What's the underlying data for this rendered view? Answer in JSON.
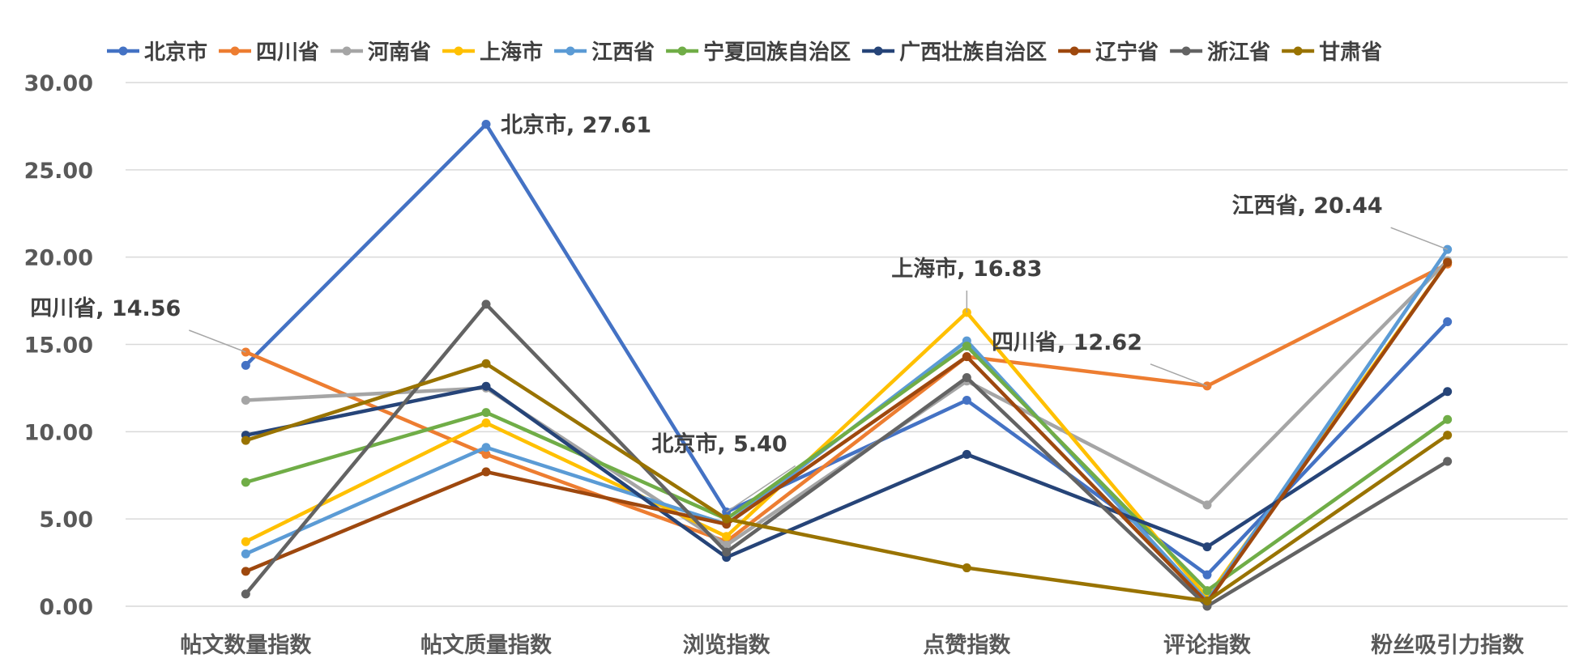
{
  "chart_data": {
    "type": "line",
    "categories": [
      "帖文数量指数",
      "帖文质量指数",
      "浏览指数",
      "点赞指数",
      "评论指数",
      "粉丝吸引力指数"
    ],
    "ylim": [
      0,
      30
    ],
    "yticks": [
      "0.00",
      "5.00",
      "10.00",
      "15.00",
      "20.00",
      "25.00",
      "30.00"
    ],
    "grid": true,
    "legend_position": "top",
    "series": [
      {
        "name": "北京市",
        "color": "#4472C4",
        "values": [
          13.8,
          27.61,
          5.4,
          11.8,
          1.8,
          16.3
        ]
      },
      {
        "name": "四川省",
        "color": "#ED7D31",
        "values": [
          14.56,
          8.7,
          3.7,
          14.3,
          12.62,
          19.6
        ]
      },
      {
        "name": "河南省",
        "color": "#A5A5A5",
        "values": [
          11.8,
          12.5,
          3.5,
          12.9,
          5.8,
          19.8
        ]
      },
      {
        "name": "上海市",
        "color": "#FFC000",
        "values": [
          3.7,
          10.5,
          4.0,
          16.83,
          0.5,
          19.7
        ]
      },
      {
        "name": "江西省",
        "color": "#5B9BD5",
        "values": [
          3.0,
          9.1,
          4.7,
          15.2,
          0.3,
          20.44
        ]
      },
      {
        "name": "宁夏回族自治区",
        "color": "#70AD47",
        "values": [
          7.1,
          11.1,
          5.0,
          14.9,
          0.9,
          10.7
        ]
      },
      {
        "name": "广西壮族自治区",
        "color": "#264478",
        "values": [
          9.8,
          12.6,
          2.8,
          8.7,
          3.4,
          12.3
        ]
      },
      {
        "name": "辽宁省",
        "color": "#9E480E",
        "values": [
          2.0,
          7.7,
          4.7,
          14.3,
          0.2,
          19.7
        ]
      },
      {
        "name": "浙江省",
        "color": "#636363",
        "values": [
          0.7,
          17.3,
          3.1,
          13.1,
          0.0,
          8.3
        ]
      },
      {
        "name": "甘肃省",
        "color": "#997300",
        "values": [
          9.5,
          13.9,
          5.0,
          2.2,
          0.3,
          9.8
        ]
      }
    ],
    "annotations": [
      {
        "text": "北京市, 27.61",
        "series": 0,
        "index": 1,
        "label_anchor": "right"
      },
      {
        "text": "四川省, 14.56",
        "series": 1,
        "index": 0,
        "label_anchor": "upper-left"
      },
      {
        "text": "北京市, 5.40",
        "series": 0,
        "index": 2,
        "label_anchor": "upper-right"
      },
      {
        "text": "上海市, 16.83",
        "series": 3,
        "index": 3,
        "label_anchor": "above"
      },
      {
        "text": "四川省, 12.62",
        "series": 1,
        "index": 4,
        "label_anchor": "upper-left"
      },
      {
        "text": "江西省, 20.44",
        "series": 4,
        "index": 5,
        "label_anchor": "upper-left"
      }
    ]
  }
}
